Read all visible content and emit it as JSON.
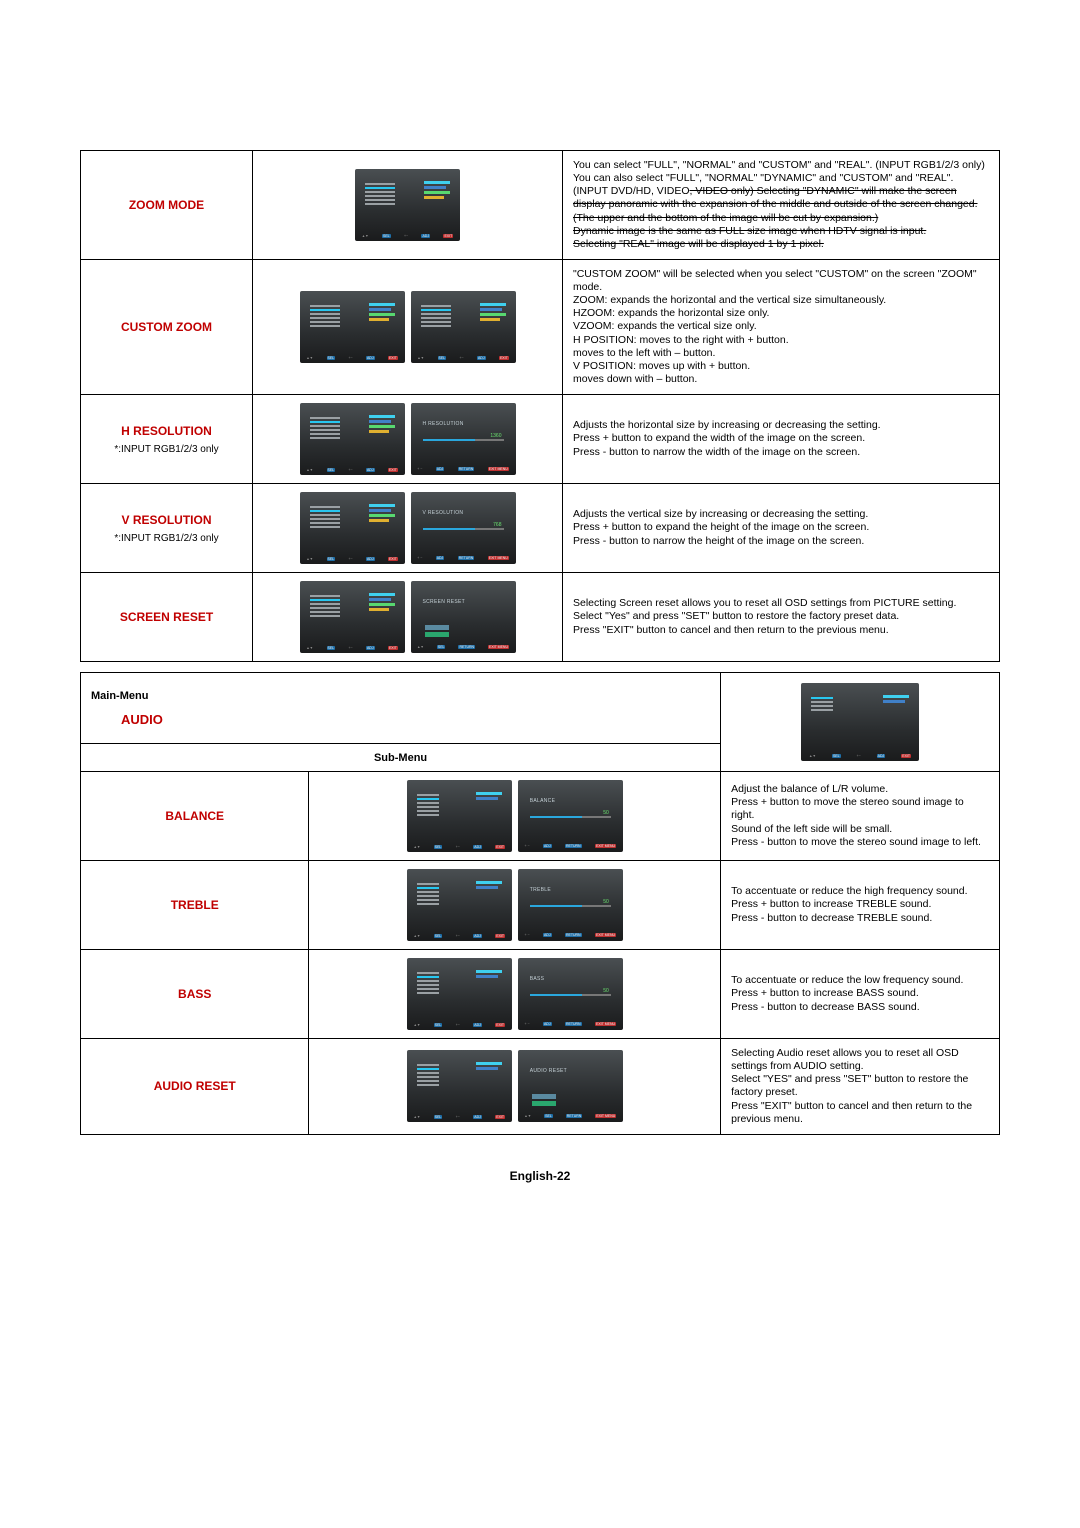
{
  "page_footer": "English-22",
  "colors": {
    "accent_red": "#c00000",
    "osd_bg": "#3a3f42",
    "bar_blue": "#2aa7dd"
  },
  "screen_rows": [
    {
      "id": "zoom-mode",
      "label": "ZOOM MODE",
      "sublabel": "",
      "thumbs": [
        "menu"
      ],
      "desc": "You can select \"FULL\", \"NORMAL\" and \"CUSTOM\" and \"REAL\". (INPUT RGB1/2/3 only)  You can also select \"FULL\", \"NORMAL\" \"DYNAMIC\" and \"CUSTOM\" and \"REAL\". (INPUT DVD/HD, VIDEO<S>, VIDEO only) Selecting \"DYNAMIC\" will make the screen display panoramic with the expansion of the middle and outside of the screen changed. (The upper and the bottom of the image will be cut by expansion.)\nDynamic image is the same as FULL size image when HDTV signal is input.\nSelecting \"REAL\" image will be displayed 1 by 1 pixel."
    },
    {
      "id": "custom-zoom",
      "label": "CUSTOM ZOOM",
      "sublabel": "",
      "thumbs": [
        "menu",
        "menu2"
      ],
      "desc": "\"CUSTOM ZOOM\" will be selected when you select \"CUSTOM\" on the screen \"ZOOM\" mode.\nZOOM: expands the horizontal and the vertical size simultaneously.\nHZOOM:  expands the horizontal size only.\nVZOOM:  expands the vertical size only.\nH POSITION: moves to the right with + button.\n                       moves to the left with – button.\nV POSITION: moves up with + button.\n                       moves down with – button."
    },
    {
      "id": "h-resolution",
      "label": "H RESOLUTION",
      "sublabel": "*:INPUT RGB1/2/3 only",
      "thumbs": [
        "menu",
        "slider"
      ],
      "slider_title": "H RESOLUTION",
      "slider_val": "1360",
      "desc": "Adjusts the horizontal size by increasing or decreasing the setting.\nPress + button to expand the width of the image on the screen.\nPress - button to narrow the width of the image on the screen."
    },
    {
      "id": "v-resolution",
      "label": "V RESOLUTION",
      "sublabel": "*:INPUT RGB1/2/3 only",
      "thumbs": [
        "menu",
        "slider"
      ],
      "slider_title": "V RESOLUTION",
      "slider_val": "768",
      "desc": "Adjusts the vertical size by increasing or decreasing the setting.\nPress + button to expand the height of the image on the screen.\nPress - button to narrow the height of the image on the screen."
    },
    {
      "id": "screen-reset",
      "label": "SCREEN RESET",
      "sublabel": "",
      "thumbs": [
        "menu",
        "choice"
      ],
      "slider_title": "SCREEN RESET",
      "choice_no": "NO",
      "choice_yes": "YES",
      "desc": "Selecting Screen reset allows you to reset all OSD settings from PICTURE setting.\nSelect \"Yes\" and press \"SET\" button to restore the factory preset data.\nPress \"EXIT\" button to cancel and then return to the previous menu."
    }
  ],
  "audio_section": {
    "main_menu_label": "Main-Menu",
    "title": "AUDIO",
    "sub_menu_label": "Sub-Menu",
    "rows": [
      {
        "id": "balance",
        "label": "BALANCE",
        "thumbs": [
          "audio-menu",
          "slider"
        ],
        "slider_title": "BALANCE",
        "slider_val": "50",
        "desc": "Adjust the balance of L/R volume.\nPress + button to move the stereo sound image to right.\nSound of the left side will be small.\nPress - button to move the stereo sound image to left."
      },
      {
        "id": "treble",
        "label": "TREBLE",
        "thumbs": [
          "audio-menu",
          "slider"
        ],
        "slider_title": "TREBLE",
        "slider_val": "50",
        "desc": "To accentuate or reduce the high frequency sound.\nPress + button to increase TREBLE sound.\nPress - button to decrease TREBLE sound."
      },
      {
        "id": "bass",
        "label": "BASS",
        "thumbs": [
          "audio-menu",
          "slider"
        ],
        "slider_title": "BASS",
        "slider_val": "50",
        "desc": "To accentuate or reduce the low frequency sound.\nPress + button to increase BASS sound.\nPress - button to decrease BASS sound."
      },
      {
        "id": "audio-reset",
        "label": "AUDIO RESET",
        "thumbs": [
          "audio-menu",
          "choice"
        ],
        "slider_title": "AUDIO RESET",
        "choice_no": "NO",
        "choice_yes": "YES",
        "desc": "Selecting Audio reset allows you to reset all OSD settings from AUDIO setting.\nSelect \"YES\" and press \"SET\" button to restore the factory preset.\nPress \"EXIT\" button to cancel and then return to the previous menu."
      }
    ]
  }
}
